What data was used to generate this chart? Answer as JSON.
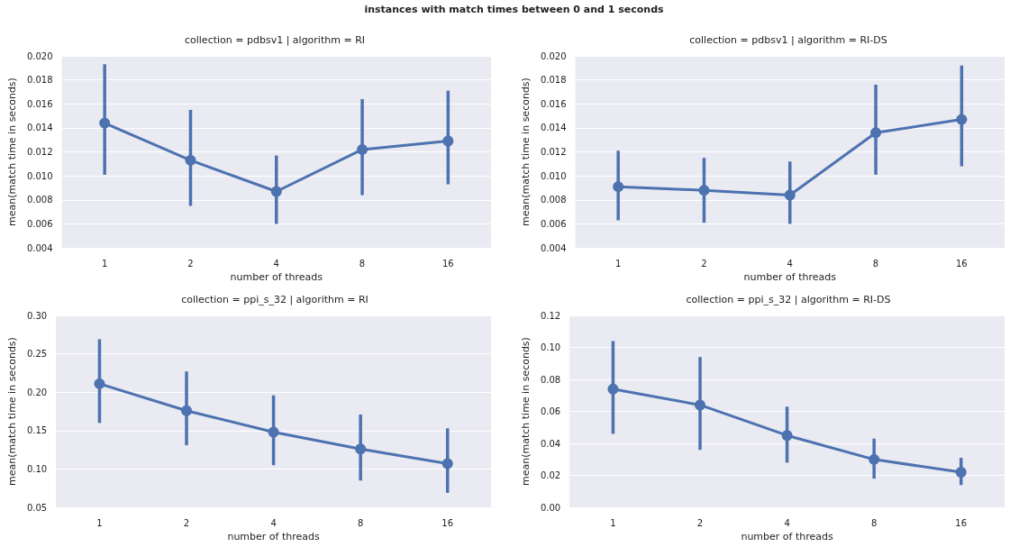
{
  "chart_data": [
    {
      "type": "line",
      "title": "collection = pdbsv1 | algorithm = RI",
      "annotations": [
        "instances with match times between 0 and 1 seconds"
      ],
      "xlabel": "number of threads",
      "ylabel": "mean(match time in seconds)",
      "categories": [
        "1",
        "2",
        "4",
        "8",
        "16"
      ],
      "series": [
        {
          "color": "#4c72b0",
          "values": [
            0.0144,
            0.0113,
            0.0087,
            0.0122,
            0.0129
          ],
          "errors": [
            [
              0.0101,
              0.0193
            ],
            [
              0.0075,
              0.0155
            ],
            [
              0.006,
              0.0117
            ],
            [
              0.0084,
              0.0164
            ],
            [
              0.0093,
              0.0171
            ]
          ]
        }
      ],
      "ylim": [
        0.004,
        0.02
      ],
      "yticks": [
        0.004,
        0.006,
        0.008,
        {
          "value": 0.01,
          "label": "0.010"
        },
        0.012,
        0.014,
        0.016,
        0.018,
        {
          "value": 0.02,
          "label": "0.020"
        }
      ],
      "grid": "y",
      "marker": "circle",
      "line_style": "solid"
    },
    {
      "type": "line",
      "title": "collection = pdbsv1 | algorithm = RI-DS",
      "xlabel": "number of threads",
      "ylabel": "mean(match time in seconds)",
      "categories": [
        "1",
        "2",
        "4",
        "8",
        "16"
      ],
      "series": [
        {
          "color": "#4c72b0",
          "values": [
            0.0091,
            0.0088,
            0.0084,
            0.0136,
            0.0147
          ],
          "errors": [
            [
              0.0063,
              0.0121
            ],
            [
              0.0061,
              0.0115
            ],
            [
              0.006,
              0.0112
            ],
            [
              0.0101,
              0.0176
            ],
            [
              0.0108,
              0.0192
            ]
          ]
        }
      ],
      "ylim": [
        0.004,
        0.02
      ],
      "yticks": [
        0.004,
        0.006,
        0.008,
        {
          "value": 0.01,
          "label": "0.010"
        },
        0.012,
        0.014,
        0.016,
        0.018,
        {
          "value": 0.02,
          "label": "0.020"
        }
      ],
      "grid": "y",
      "marker": "circle",
      "line_style": "solid"
    },
    {
      "type": "line",
      "title": "collection = ppi_s_32 | algorithm = RI",
      "xlabel": "number of threads",
      "ylabel": "mean(match time in seconds)",
      "categories": [
        "1",
        "2",
        "4",
        "8",
        "16"
      ],
      "series": [
        {
          "color": "#4c72b0",
          "values": [
            0.211,
            0.176,
            0.148,
            0.126,
            0.107
          ],
          "errors": [
            [
              0.16,
              0.269
            ],
            [
              0.131,
              0.227
            ],
            [
              0.105,
              0.196
            ],
            [
              0.085,
              0.171
            ],
            [
              0.069,
              0.153
            ]
          ]
        }
      ],
      "ylim": [
        0.05,
        0.3
      ],
      "yticks": [
        0.05,
        {
          "value": 0.1,
          "label": "0.10"
        },
        0.15,
        {
          "value": 0.2,
          "label": "0.20"
        },
        0.25,
        {
          "value": 0.3,
          "label": "0.30"
        }
      ],
      "grid": "y",
      "marker": "circle",
      "line_style": "solid"
    },
    {
      "type": "line",
      "title": "collection = ppi_s_32 | algorithm = RI-DS",
      "xlabel": "number of threads",
      "ylabel": "mean(match time in seconds)",
      "categories": [
        "1",
        "2",
        "4",
        "8",
        "16"
      ],
      "series": [
        {
          "color": "#4c72b0",
          "values": [
            0.074,
            0.064,
            0.045,
            0.03,
            0.022
          ],
          "errors": [
            [
              0.046,
              0.104
            ],
            [
              0.036,
              0.094
            ],
            [
              0.028,
              0.063
            ],
            [
              0.018,
              0.043
            ],
            [
              0.014,
              0.031
            ]
          ]
        }
      ],
      "ylim": [
        0,
        0.12
      ],
      "yticks": [
        {
          "value": 0,
          "label": "0.00"
        },
        0.02,
        0.04,
        0.06,
        0.08,
        {
          "value": 0.1,
          "label": "0.10"
        },
        0.12
      ],
      "grid": "y",
      "marker": "circle",
      "line_style": "solid"
    }
  ]
}
